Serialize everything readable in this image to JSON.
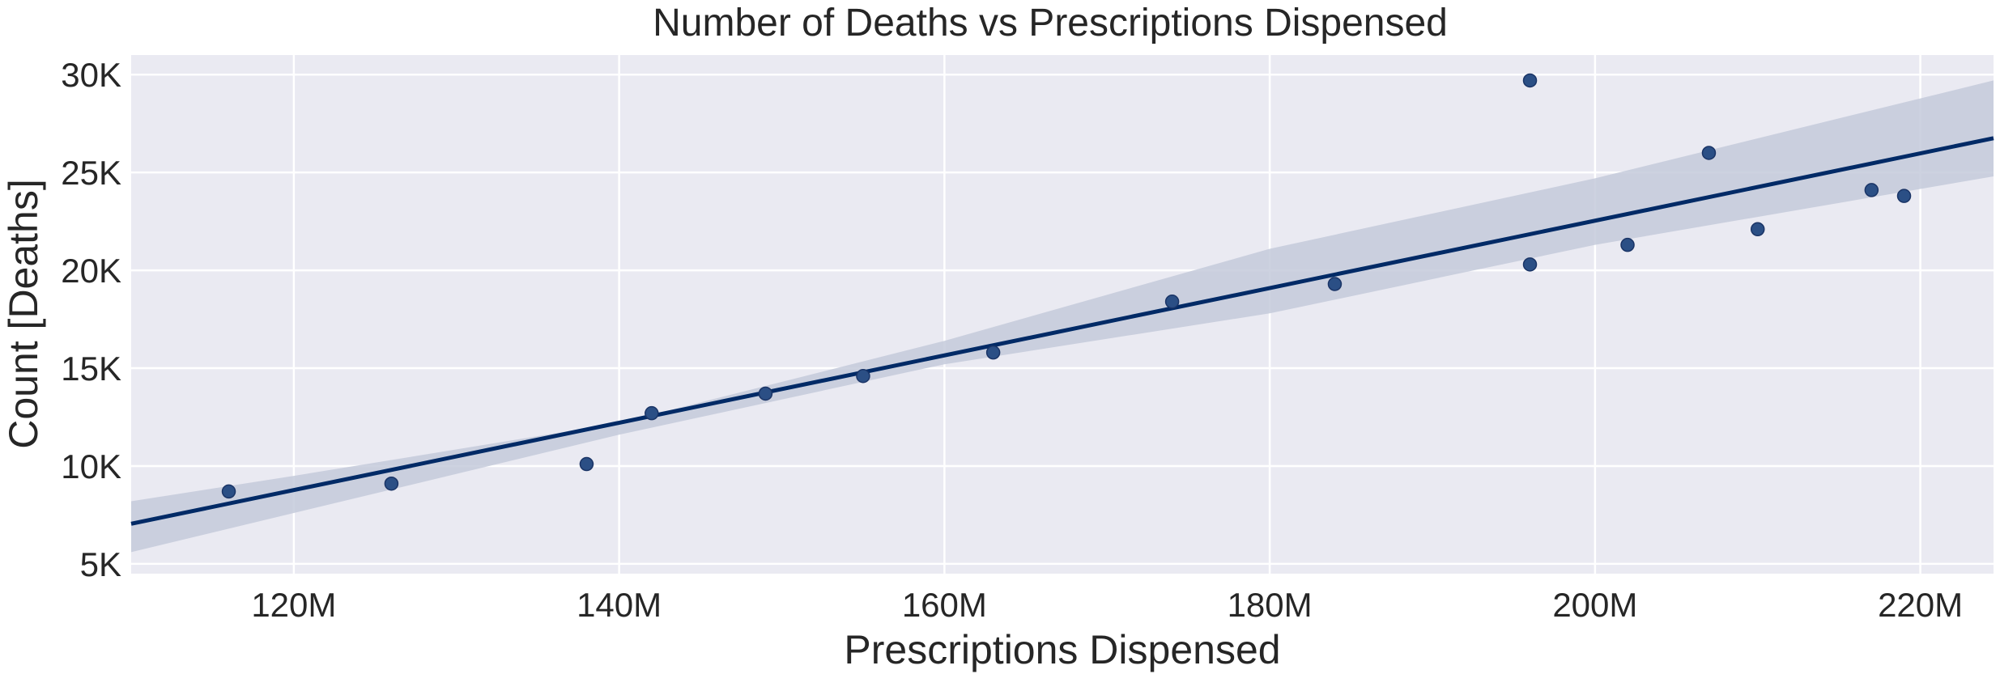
{
  "chart_data": {
    "type": "scatter",
    "title": "Number of Deaths vs Prescriptions Dispensed",
    "xlabel": "Prescriptions Dispensed",
    "ylabel": "Count [Deaths]",
    "xlim": [
      110,
      224.5
    ],
    "ylim": [
      4500,
      31000
    ],
    "x_ticks": [
      120,
      140,
      160,
      180,
      200,
      220
    ],
    "x_tick_labels": [
      "120M",
      "140M",
      "160M",
      "180M",
      "200M",
      "220M"
    ],
    "y_ticks": [
      5000,
      10000,
      15000,
      20000,
      25000,
      30000
    ],
    "y_tick_labels": [
      "5K",
      "10K",
      "15K",
      "20K",
      "25K",
      "30K"
    ],
    "grid": true,
    "series": [
      {
        "points": [
          {
            "x": 116,
            "y": 8700
          },
          {
            "x": 126,
            "y": 9100
          },
          {
            "x": 138,
            "y": 10100
          },
          {
            "x": 142,
            "y": 12700
          },
          {
            "x": 149,
            "y": 13700
          },
          {
            "x": 155,
            "y": 14600
          },
          {
            "x": 163,
            "y": 15800
          },
          {
            "x": 174,
            "y": 18400
          },
          {
            "x": 184,
            "y": 19300
          },
          {
            "x": 196,
            "y": 29700
          },
          {
            "x": 196,
            "y": 20300
          },
          {
            "x": 202,
            "y": 21300
          },
          {
            "x": 207,
            "y": 26000
          },
          {
            "x": 210,
            "y": 22100
          },
          {
            "x": 217,
            "y": 24100
          },
          {
            "x": 219,
            "y": 23800
          }
        ]
      }
    ],
    "regression": {
      "line": [
        [
          110,
          7050
        ],
        [
          224.5,
          26750
        ]
      ],
      "ci_upper": [
        [
          110,
          8200
        ],
        [
          120,
          9500
        ],
        [
          140,
          12200
        ],
        [
          160,
          16400
        ],
        [
          180,
          21100
        ],
        [
          200,
          24700
        ],
        [
          224.5,
          29700
        ]
      ],
      "ci_lower": [
        [
          110,
          5600
        ],
        [
          120,
          7600
        ],
        [
          140,
          11600
        ],
        [
          160,
          15200
        ],
        [
          180,
          17800
        ],
        [
          200,
          21300
        ],
        [
          224.5,
          24800
        ]
      ]
    },
    "colors": {
      "plot_background": "#eaeaf2",
      "grid": "#ffffff",
      "point": "#2b4f85",
      "point_edge": "#1a3466",
      "line": "#012a66",
      "band": "#c4cadb"
    }
  }
}
